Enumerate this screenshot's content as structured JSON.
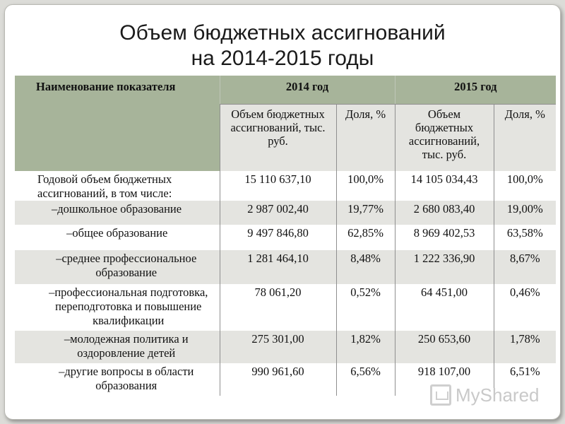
{
  "title": {
    "line1": "Объем бюджетных ассигнований",
    "line2": "на 2014-2015 годы"
  },
  "table": {
    "headers": {
      "name": "Наименование показателя",
      "year1": "2014 год",
      "year2": "2015 год",
      "volume": "Объем бюджетных ассигнований, тыс. руб.",
      "share": "Доля, %"
    },
    "rows": [
      {
        "name": "Годовой объем бюджетных ассигнований, в том числе:",
        "v2014": "15 110 637,10",
        "s2014": "100,0%",
        "v2015": "14 105 034,43",
        "s2015": "100,0%"
      },
      {
        "name": "–дошкольное образование",
        "v2014": "2 987 002,40",
        "s2014": "19,77%",
        "v2015": "2 680 083,40",
        "s2015": "19,00%"
      },
      {
        "name": "–общее образование",
        "v2014": "9 497 846,80",
        "s2014": "62,85%",
        "v2015": "8 969 402,53",
        "s2015": "63,58%"
      },
      {
        "name": "–среднее профессиональное образование",
        "v2014": "1 281 464,10",
        "s2014": "8,48%",
        "v2015": "1 222 336,90",
        "s2015": "8,67%"
      },
      {
        "name": "–профессиональная подготовка, переподготовка и повышение квалификации",
        "v2014": "78 061,20",
        "s2014": "0,52%",
        "v2015": "64 451,00",
        "s2015": "0,46%"
      },
      {
        "name": "–молодежная политика и оздоровление детей",
        "v2014": "275 301,00",
        "s2014": "1,82%",
        "v2015": "250 653,60",
        "s2015": "1,78%"
      },
      {
        "name": "–другие вопросы в области образования",
        "v2014": "990 961,60",
        "s2014": "6,56%",
        "v2015": "918 107,00",
        "s2015": "6,51%"
      }
    ]
  },
  "watermark": {
    "text": "MyShared",
    "icon": "myshared-logo-icon"
  }
}
